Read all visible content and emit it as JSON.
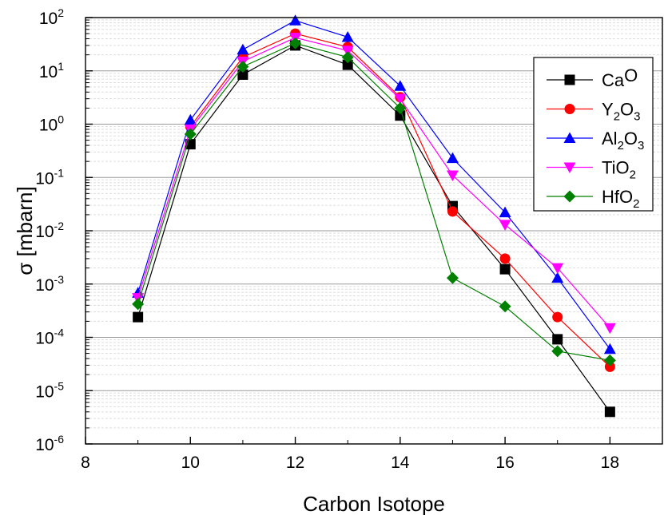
{
  "chart_data": {
    "type": "line",
    "xlabel": "Carbon Isotope",
    "ylabel": "σ [mbarn]",
    "xlim": [
      8,
      19
    ],
    "ylim": [
      1e-06,
      100
    ],
    "yscale": "log",
    "xticks": [
      8,
      10,
      12,
      14,
      16,
      18
    ],
    "yticks": [
      {
        "value": 1e-06,
        "base": "10",
        "exp": "-6"
      },
      {
        "value": 1e-05,
        "base": "10",
        "exp": "-5"
      },
      {
        "value": 0.0001,
        "base": "10",
        "exp": "-4"
      },
      {
        "value": 0.001,
        "base": "10",
        "exp": "-3"
      },
      {
        "value": 0.01,
        "base": "10",
        "exp": "-2"
      },
      {
        "value": 0.1,
        "base": "10",
        "exp": "-1"
      },
      {
        "value": 1,
        "base": "10",
        "exp": "0"
      },
      {
        "value": 10,
        "base": "10",
        "exp": "1"
      },
      {
        "value": 100,
        "base": "10",
        "exp": "2"
      }
    ],
    "grid": "horizontal major and minor",
    "legend_position": "top-right",
    "x": [
      9,
      10,
      11,
      12,
      13,
      14,
      15,
      16,
      17,
      18
    ],
    "series": [
      {
        "name": "CaO",
        "name_parts": [
          [
            "Ca",
            "n"
          ],
          [
            "O",
            "n"
          ]
        ],
        "color": "#000000",
        "marker": "square",
        "values": [
          0.00024,
          0.42,
          8.5,
          30,
          13,
          1.45,
          0.029,
          0.0019,
          9.2e-05,
          4e-06
        ]
      },
      {
        "name": "Y2O3",
        "name_parts": [
          [
            "Y",
            "n"
          ],
          [
            "2",
            "s"
          ],
          [
            "O",
            "n"
          ],
          [
            "3",
            "s"
          ]
        ],
        "color": "#ff0000",
        "marker": "circle",
        "values": [
          null,
          0.9,
          18,
          50,
          28,
          3.2,
          0.023,
          0.003,
          0.00024,
          2.8e-05
        ]
      },
      {
        "name": "Al2O3",
        "name_parts": [
          [
            "Al",
            "n"
          ],
          [
            "2",
            "s"
          ],
          [
            "O",
            "n"
          ],
          [
            "3",
            "s"
          ]
        ],
        "color": "#0000ff",
        "marker": "triangle-up",
        "values": [
          0.00068,
          1.2,
          25,
          88,
          43,
          5.2,
          0.23,
          0.022,
          0.0013,
          6e-05
        ]
      },
      {
        "name": "TiO2",
        "name_parts": [
          [
            "TiO",
            "n"
          ],
          [
            "2",
            "s"
          ]
        ],
        "color": "#ff00ff",
        "marker": "triangle-down",
        "values": [
          0.00055,
          0.8,
          15,
          42,
          24,
          3.0,
          0.11,
          0.013,
          0.002,
          0.00015
        ]
      },
      {
        "name": "HfO2",
        "name_parts": [
          [
            "HfO",
            "n"
          ],
          [
            "2",
            "s"
          ]
        ],
        "color": "#008000",
        "marker": "diamond",
        "values": [
          0.00042,
          0.65,
          12,
          33,
          18,
          2.0,
          0.0013,
          0.00038,
          5.5e-05,
          3.7e-05
        ]
      }
    ]
  }
}
